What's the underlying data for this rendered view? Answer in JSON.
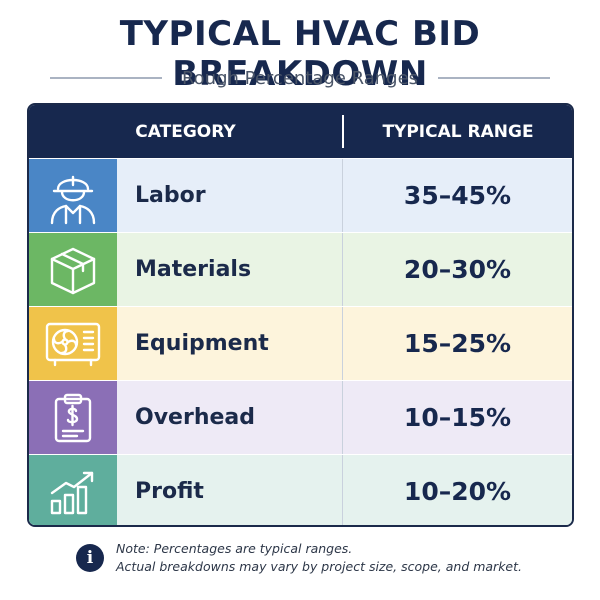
{
  "header": {
    "title": "TYPICAL HVAC BID BREAKDOWN",
    "subtitle": "Rough Percentage Ranges"
  },
  "table": {
    "columns": [
      "CATEGORY",
      "TYPICAL RANGE"
    ],
    "rows": [
      {
        "category": "Labor",
        "range": "35–45%",
        "icon": "worker-hardhat-icon",
        "icon_bg": "#4a86c6",
        "row_bg": "#e6eef9"
      },
      {
        "category": "Materials",
        "range": "20–30%",
        "icon": "box-icon",
        "icon_bg": "#6cb764",
        "row_bg": "#e9f4e4"
      },
      {
        "category": "Equipment",
        "range": "15–25%",
        "icon": "hvac-unit-icon",
        "icon_bg": "#f0c34a",
        "row_bg": "#fdf4dc"
      },
      {
        "category": "Overhead",
        "range": "10–15%",
        "icon": "invoice-clipboard-icon",
        "icon_bg": "#8b6fb6",
        "row_bg": "#eeeaf6"
      },
      {
        "category": "Profit",
        "range": "10–20%",
        "icon": "growth-chart-icon",
        "icon_bg": "#5fae9d",
        "row_bg": "#e5f2ee"
      }
    ]
  },
  "note": {
    "line1": "Note: Percentages are typical ranges.",
    "line2": "Actual breakdowns may vary by project size, scope, and market."
  },
  "colors": {
    "navy": "#17284e"
  }
}
